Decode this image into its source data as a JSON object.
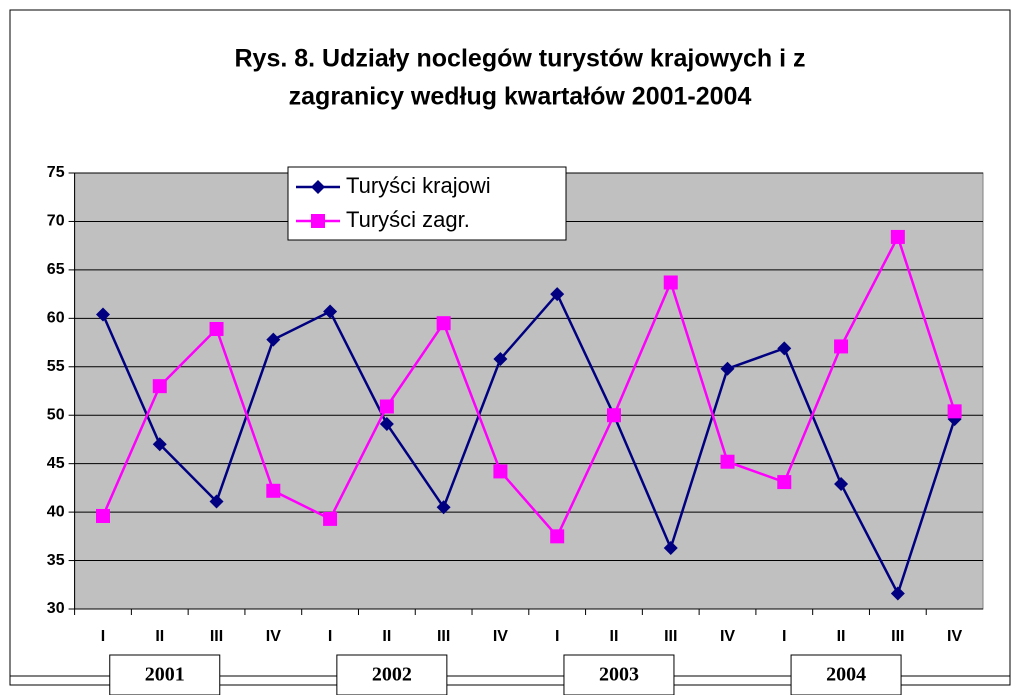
{
  "chart_data": {
    "type": "line",
    "title": [
      "Rys. 8. Udziały noclegów turystów krajowych i z",
      "zagranicy według kwartałów 2001-2004"
    ],
    "categories": [
      "I",
      "II",
      "III",
      "IV",
      "I",
      "II",
      "III",
      "IV",
      "I",
      "II",
      "III",
      "IV",
      "I",
      "II",
      "III",
      "IV"
    ],
    "groups": [
      "2001",
      "2002",
      "2003",
      "2004"
    ],
    "series": [
      {
        "name": "Turyści krajowi",
        "color": "#000080",
        "marker": "diamond",
        "values": [
          60.4,
          47.0,
          41.1,
          57.8,
          60.7,
          49.1,
          40.5,
          55.8,
          62.5,
          50.0,
          36.3,
          54.8,
          56.9,
          42.9,
          31.6,
          49.6
        ]
      },
      {
        "name": "Turyści zagr.",
        "color": "#ff00ff",
        "marker": "square",
        "values": [
          39.6,
          53.0,
          58.9,
          42.2,
          39.3,
          50.9,
          59.5,
          44.2,
          37.5,
          50.0,
          63.7,
          45.2,
          43.1,
          57.1,
          68.4,
          50.4
        ]
      }
    ],
    "ylim": [
      30,
      75
    ],
    "yticks": [
      30,
      35,
      40,
      45,
      50,
      55,
      60,
      65,
      70,
      75
    ],
    "grid": true,
    "legend": "top-left"
  }
}
